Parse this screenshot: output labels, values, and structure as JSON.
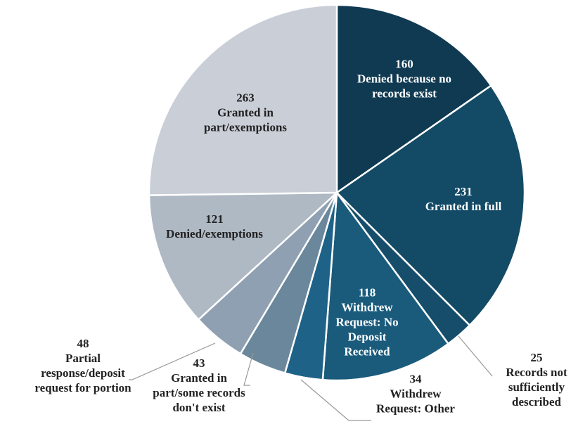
{
  "chart_data": {
    "type": "pie",
    "categories": [
      "Denied because no\nrecords exist",
      "Granted in full",
      "Records not\nsufficiently\ndescribed",
      "Withdrew\nRequest: No\nDeposit\nReceived",
      "Withdrew\nRequest: Other",
      "Granted in\npart/some records\ndon't exist",
      "Partial\nresponse/deposit\nrequest for portion",
      "Denied/exemptions",
      "Granted in\npart/exemptions"
    ],
    "values": [
      160,
      231,
      25,
      118,
      34,
      43,
      48,
      121,
      263
    ],
    "colors": [
      "#0f3a52",
      "#134a66",
      "#154d6b",
      "#1a5b7c",
      "#1e6288",
      "#6a879c",
      "#8ea0b1",
      "#afb9c4",
      "#c9ced7"
    ]
  }
}
